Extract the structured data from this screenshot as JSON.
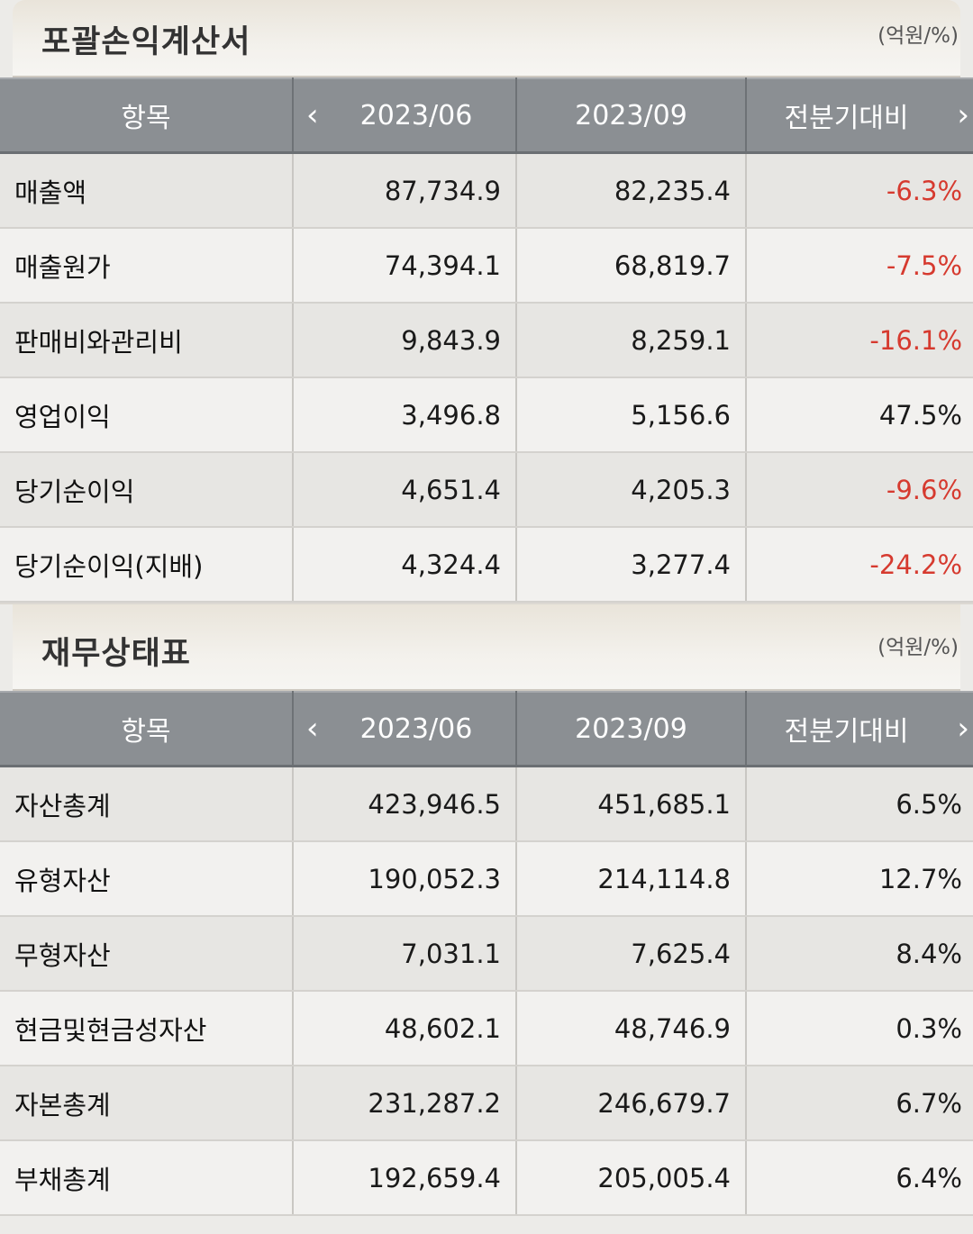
{
  "income_statement": {
    "title": "포괄손익계산서",
    "unit": "(억원/%)",
    "headers": {
      "item": "항목",
      "prev": "2023/06",
      "curr": "2023/09",
      "change": "전분기대비"
    },
    "rows": [
      {
        "label": "매출액",
        "prev": "87,734.9",
        "curr": "82,235.4",
        "change": "-6.3%"
      },
      {
        "label": "매출원가",
        "prev": "74,394.1",
        "curr": "68,819.7",
        "change": "-7.5%"
      },
      {
        "label": "판매비와관리비",
        "prev": "9,843.9",
        "curr": "8,259.1",
        "change": "-16.1%"
      },
      {
        "label": "영업이익",
        "prev": "3,496.8",
        "curr": "5,156.6",
        "change": "47.5%"
      },
      {
        "label": "당기순이익",
        "prev": "4,651.4",
        "curr": "4,205.3",
        "change": "-9.6%"
      },
      {
        "label": "당기순이익(지배)",
        "prev": "4,324.4",
        "curr": "3,277.4",
        "change": "-24.2%"
      }
    ]
  },
  "balance_sheet": {
    "title": "재무상태표",
    "unit": "(억원/%)",
    "headers": {
      "item": "항목",
      "prev": "2023/06",
      "curr": "2023/09",
      "change": "전분기대비"
    },
    "rows": [
      {
        "label": "자산총계",
        "prev": "423,946.5",
        "curr": "451,685.1",
        "change": "6.5%"
      },
      {
        "label": "유형자산",
        "prev": "190,052.3",
        "curr": "214,114.8",
        "change": "12.7%"
      },
      {
        "label": "무형자산",
        "prev": "7,031.1",
        "curr": "7,625.4",
        "change": "8.4%"
      },
      {
        "label": "현금및현금성자산",
        "prev": "48,602.1",
        "curr": "48,746.9",
        "change": "0.3%"
      },
      {
        "label": "자본총계",
        "prev": "231,287.2",
        "curr": "246,679.7",
        "change": "6.7%"
      },
      {
        "label": "부채총계",
        "prev": "192,659.4",
        "curr": "205,005.4",
        "change": "6.4%"
      }
    ]
  },
  "icons": {
    "prev": "chevron-left-icon",
    "next": "chevron-right-icon"
  },
  "colors": {
    "negative": "#d63a2f",
    "header_bg": "#8b8f93"
  }
}
